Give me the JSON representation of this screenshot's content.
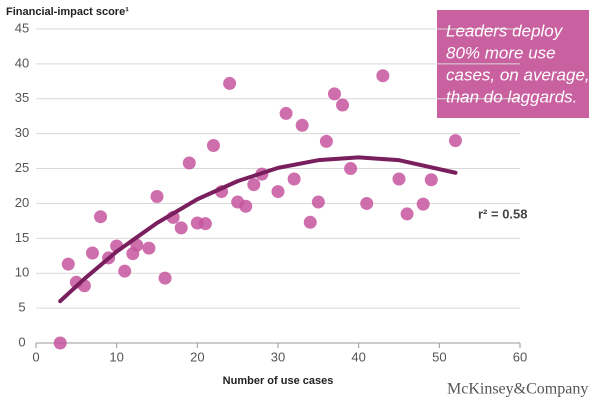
{
  "chart_data": {
    "type": "scatter",
    "y_label": "Financial-impact score¹",
    "x_label": "Number of use cases",
    "callout": [
      "Leaders deploy",
      "80% more use",
      "cases, on average,",
      "than do laggards."
    ],
    "r_squared": "r² = 0.58",
    "brand": "McKinsey&Company",
    "xlim": [
      0,
      60
    ],
    "xticks": [
      0,
      10,
      20,
      30,
      40,
      50,
      60
    ],
    "ylim": [
      0,
      45
    ],
    "yticks": [
      0,
      5,
      10,
      15,
      20,
      25,
      30,
      35,
      40,
      45
    ],
    "grid": true,
    "color": "#c5559e",
    "x": [
      3,
      4,
      5,
      6,
      7,
      8,
      9,
      10,
      11,
      12,
      12.5,
      14,
      15,
      16,
      17,
      18,
      19,
      20,
      21,
      22,
      23,
      24,
      25,
      26,
      27,
      28,
      30,
      31,
      32,
      33,
      34,
      35,
      36,
      37,
      38,
      39,
      41,
      43,
      45,
      46,
      48,
      49,
      52
    ],
    "values": [
      0,
      11.3,
      8.7,
      8.2,
      12.9,
      18.1,
      12.2,
      13.9,
      10.3,
      12.8,
      14,
      13.6,
      21,
      9.3,
      18,
      16.5,
      25.8,
      17.2,
      17.1,
      28.3,
      21.7,
      37.2,
      20.2,
      19.6,
      22.7,
      24.2,
      21.7,
      32.9,
      23.5,
      31.2,
      17.3,
      20.2,
      28.9,
      35.7,
      34.1,
      25,
      20,
      38.3,
      23.5,
      18.5,
      19.9,
      23.4,
      29
    ],
    "trendline": {
      "color": "#7a1f5e",
      "x": [
        3,
        6,
        10,
        15,
        20,
        25,
        30,
        35,
        40,
        45,
        52
      ],
      "values": [
        6,
        9.2,
        13.1,
        17.2,
        20.6,
        23.2,
        25.1,
        26.2,
        26.6,
        26.2,
        24.4
      ]
    }
  }
}
